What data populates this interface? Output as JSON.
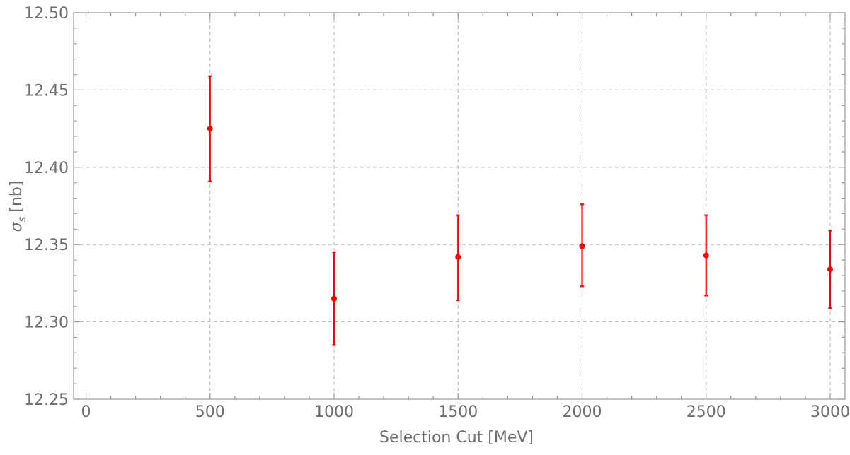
{
  "chart_data": {
    "type": "scatter",
    "title": "",
    "xlabel": "Selection Cut [MeV]",
    "ylabel": "[nb]",
    "ylabel_symbol": "σ",
    "ylabel_subscript": "s",
    "xlim": [
      -50,
      3060
    ],
    "ylim": [
      12.25,
      12.5
    ],
    "grid": true,
    "x_ticks": [
      0,
      500,
      1000,
      1500,
      2000,
      2500,
      3000
    ],
    "y_ticks": [
      12.25,
      12.3,
      12.35,
      12.4,
      12.45,
      12.5
    ],
    "x_tick_labels": [
      "0",
      "500",
      "1000",
      "1500",
      "2000",
      "2500",
      "3000"
    ],
    "y_tick_labels": [
      "12.25",
      "12.30",
      "12.35",
      "12.40",
      "12.45",
      "12.50"
    ],
    "series": [
      {
        "color": "#ff0000",
        "points": [
          {
            "x": 500,
            "y": 12.425,
            "err_low": 12.391,
            "err_high": 12.459
          },
          {
            "x": 1000,
            "y": 12.315,
            "err_low": 12.285,
            "err_high": 12.345
          },
          {
            "x": 1500,
            "y": 12.342,
            "err_low": 12.314,
            "err_high": 12.369
          },
          {
            "x": 2000,
            "y": 12.349,
            "err_low": 12.323,
            "err_high": 12.376
          },
          {
            "x": 2500,
            "y": 12.343,
            "err_low": 12.317,
            "err_high": 12.369
          },
          {
            "x": 3000,
            "y": 12.334,
            "err_low": 12.309,
            "err_high": 12.359
          }
        ]
      }
    ]
  }
}
